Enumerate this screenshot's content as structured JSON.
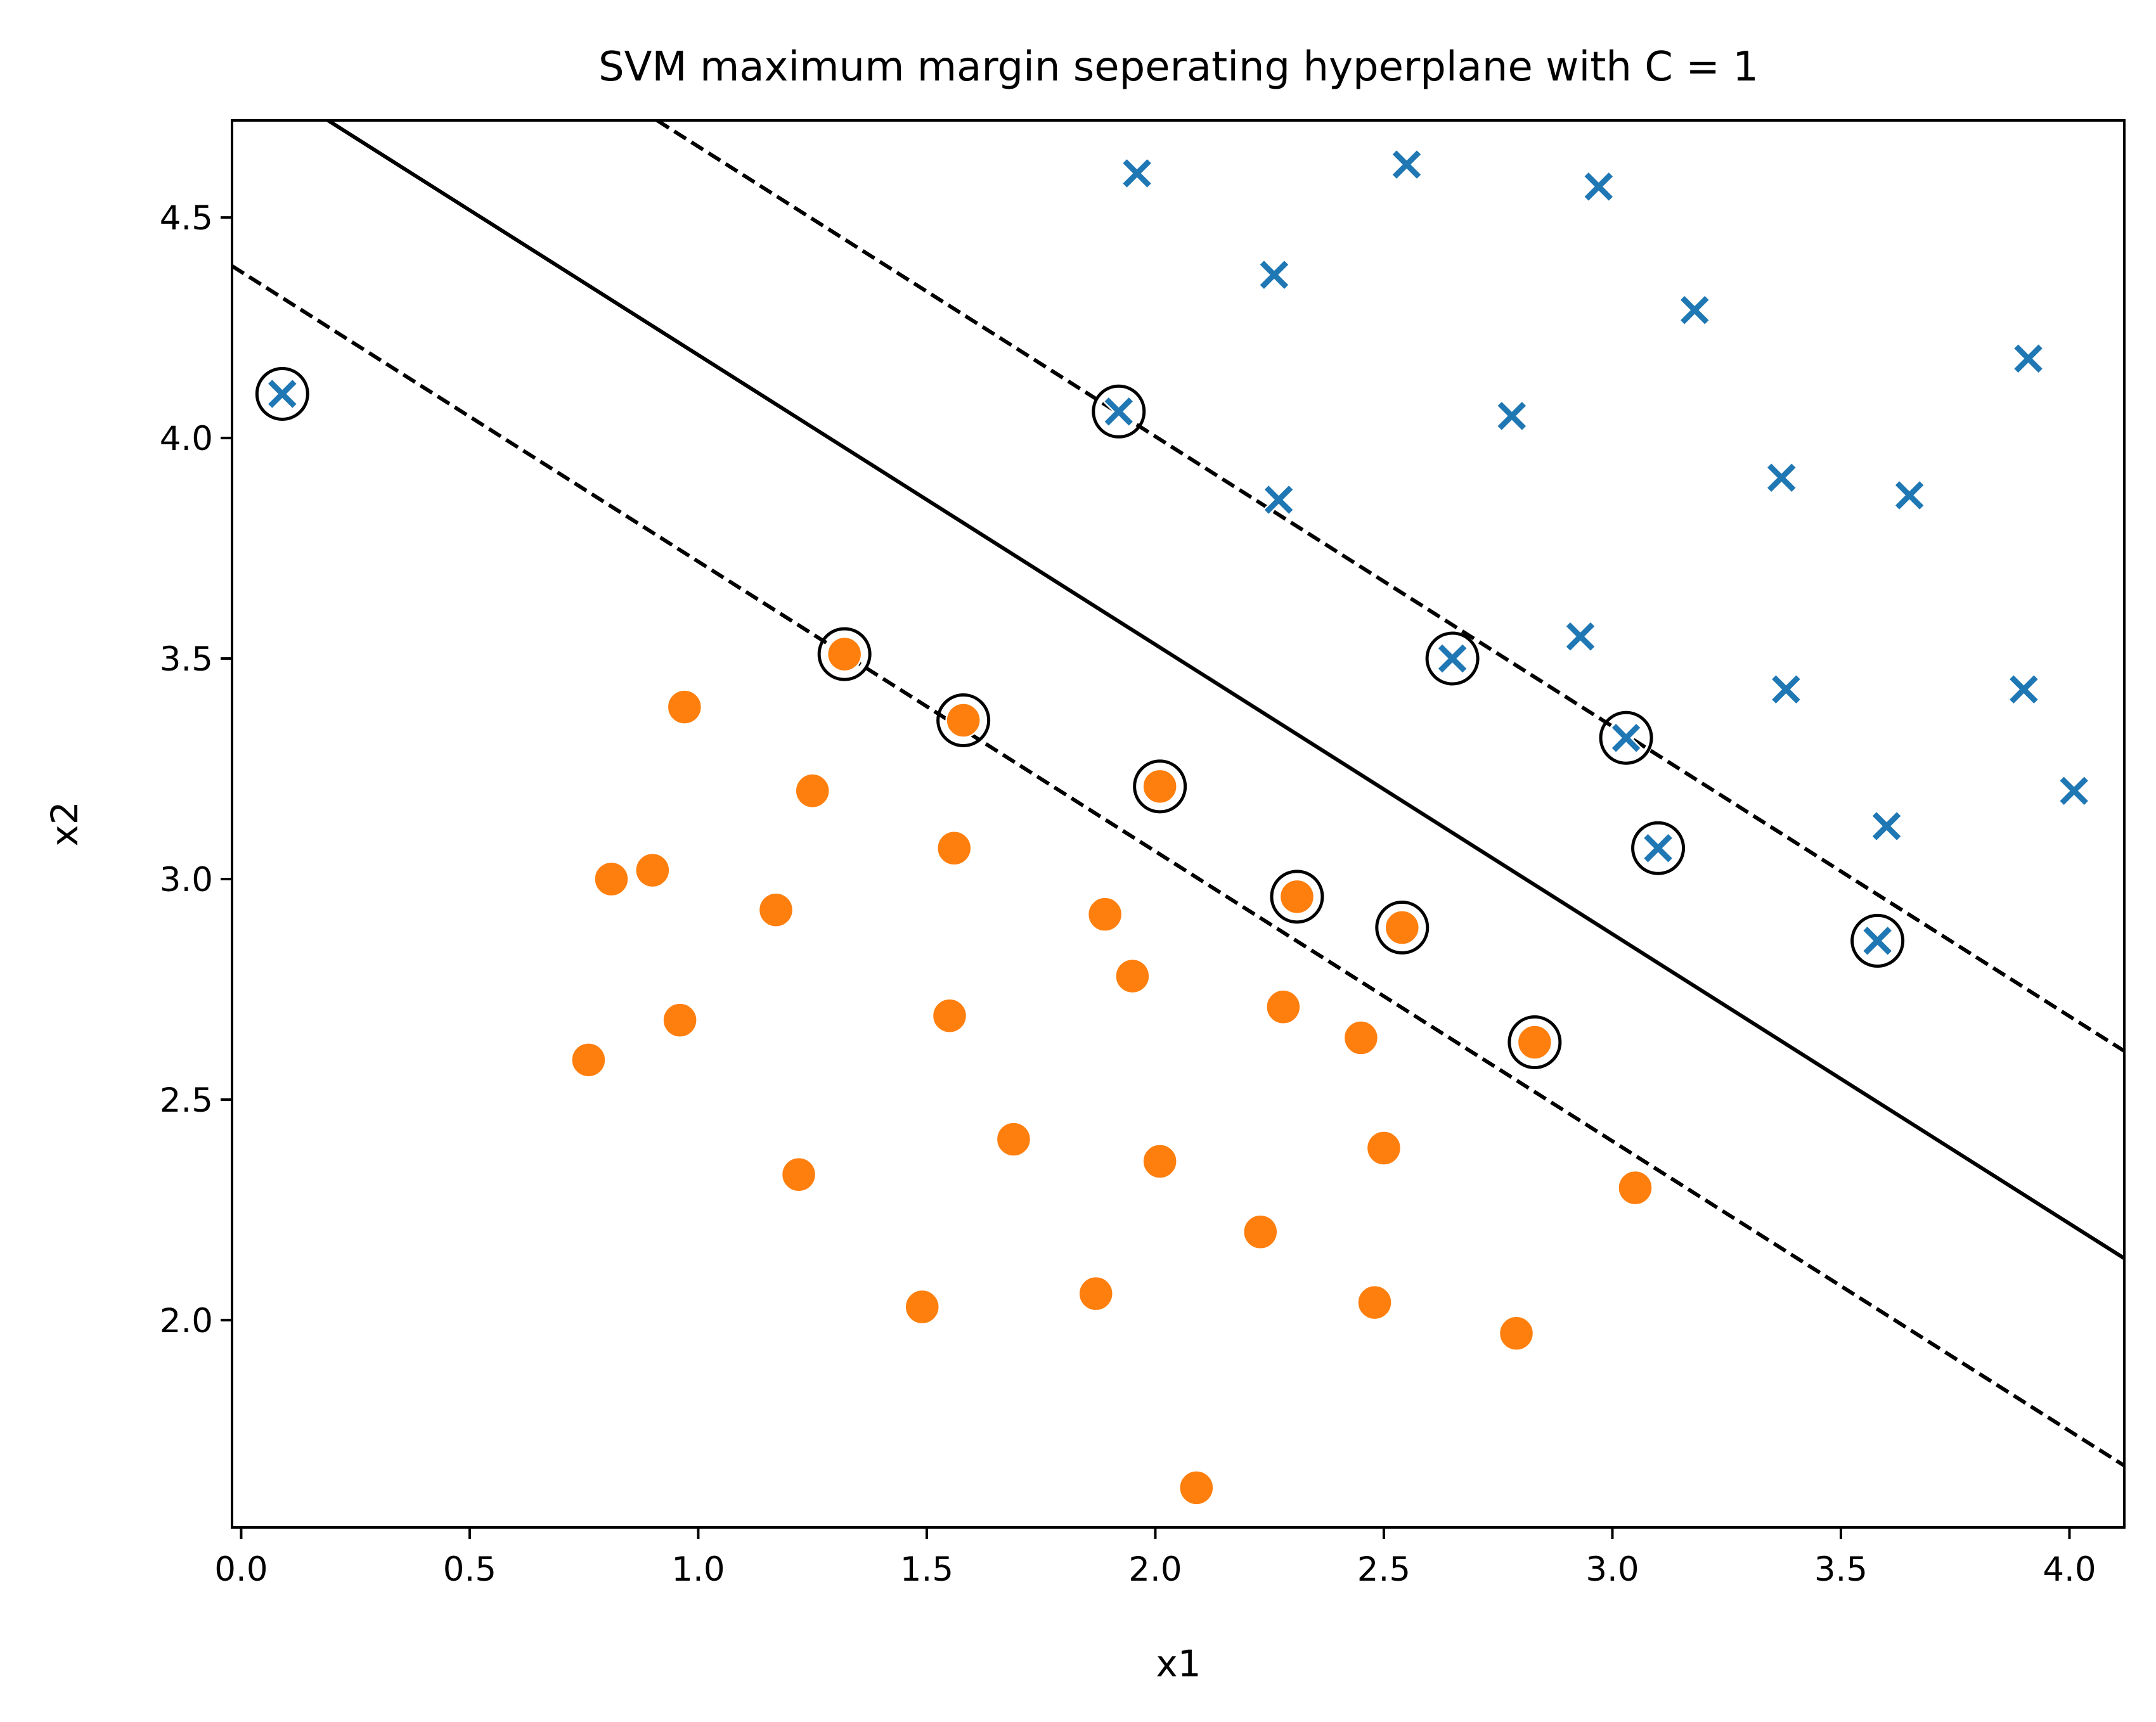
{
  "chart_data": {
    "type": "scatter",
    "title": "SVM maximum margin seperating hyperplane with C = 1",
    "xlabel": "x1",
    "ylabel": "x2",
    "xlim": [
      -0.02,
      4.12
    ],
    "ylim": [
      1.53,
      4.72
    ],
    "xticks": [
      0.0,
      0.5,
      1.0,
      1.5,
      2.0,
      2.5,
      3.0,
      3.5,
      4.0
    ],
    "xtick_labels": [
      "0.0",
      "0.5",
      "1.0",
      "1.5",
      "2.0",
      "2.5",
      "3.0",
      "3.5",
      "4.0"
    ],
    "yticks": [
      2.0,
      2.5,
      3.0,
      3.5,
      4.0,
      4.5
    ],
    "ytick_labels": [
      "2.0",
      "2.5",
      "3.0",
      "3.5",
      "4.0",
      "4.5"
    ],
    "grid": false,
    "legend": "none",
    "series": [
      {
        "marker": "X",
        "color": "#1f77b4",
        "points": [
          [
            1.96,
            4.6
          ],
          [
            2.55,
            4.62
          ],
          [
            2.97,
            4.57
          ],
          [
            2.26,
            4.37
          ],
          [
            3.18,
            4.29
          ],
          [
            3.91,
            4.18
          ],
          [
            0.09,
            4.1
          ],
          [
            1.92,
            4.06
          ],
          [
            2.78,
            4.05
          ],
          [
            2.27,
            3.86
          ],
          [
            3.37,
            3.91
          ],
          [
            3.65,
            3.87
          ],
          [
            2.93,
            3.55
          ],
          [
            2.65,
            3.5
          ],
          [
            3.38,
            3.43
          ],
          [
            3.9,
            3.43
          ],
          [
            3.03,
            3.32
          ],
          [
            3.1,
            3.07
          ],
          [
            4.01,
            3.2
          ],
          [
            3.6,
            3.12
          ],
          [
            3.58,
            2.86
          ]
        ]
      },
      {
        "marker": "o",
        "color": "#ff7f0e",
        "points": [
          [
            1.32,
            3.51
          ],
          [
            0.97,
            3.39
          ],
          [
            1.58,
            3.36
          ],
          [
            1.25,
            3.2
          ],
          [
            2.01,
            3.21
          ],
          [
            1.56,
            3.07
          ],
          [
            0.81,
            3.0
          ],
          [
            0.9,
            3.02
          ],
          [
            1.17,
            2.93
          ],
          [
            1.89,
            2.92
          ],
          [
            2.31,
            2.96
          ],
          [
            2.54,
            2.89
          ],
          [
            1.95,
            2.78
          ],
          [
            2.28,
            2.71
          ],
          [
            0.96,
            2.68
          ],
          [
            1.55,
            2.69
          ],
          [
            2.45,
            2.64
          ],
          [
            2.83,
            2.63
          ],
          [
            0.76,
            2.59
          ],
          [
            1.69,
            2.41
          ],
          [
            2.5,
            2.39
          ],
          [
            2.01,
            2.36
          ],
          [
            1.22,
            2.33
          ],
          [
            3.05,
            2.3
          ],
          [
            2.23,
            2.2
          ],
          [
            1.49,
            2.03
          ],
          [
            1.87,
            2.06
          ],
          [
            2.48,
            2.04
          ],
          [
            2.79,
            1.97
          ],
          [
            2.09,
            1.62
          ]
        ]
      }
    ],
    "support_vectors": [
      [
        0.09,
        4.1
      ],
      [
        1.92,
        4.06
      ],
      [
        2.65,
        3.5
      ],
      [
        3.03,
        3.32
      ],
      [
        3.1,
        3.07
      ],
      [
        3.58,
        2.86
      ],
      [
        1.32,
        3.51
      ],
      [
        1.58,
        3.36
      ],
      [
        2.01,
        3.21
      ],
      [
        2.31,
        2.96
      ],
      [
        2.54,
        2.89
      ],
      [
        2.83,
        2.63
      ]
    ],
    "lines": [
      {
        "style": "solid",
        "points": [
          [
            0.19,
            4.72
          ],
          [
            4.12,
            2.14
          ]
        ]
      },
      {
        "style": "dashed",
        "points": [
          [
            0.91,
            4.72
          ],
          [
            4.12,
            2.61
          ]
        ]
      },
      {
        "style": "dashed",
        "points": [
          [
            -0.02,
            4.39
          ],
          [
            4.12,
            1.67
          ]
        ]
      }
    ]
  }
}
